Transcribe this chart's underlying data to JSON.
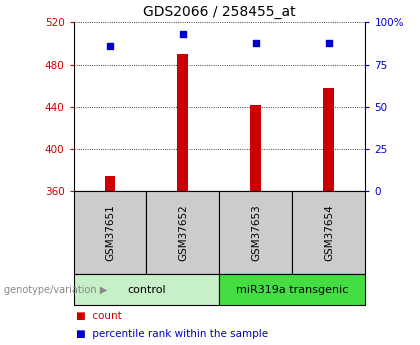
{
  "title": "GDS2066 / 258455_at",
  "samples": [
    "GSM37651",
    "GSM37652",
    "GSM37653",
    "GSM37654"
  ],
  "bar_values": [
    375,
    490,
    442,
    458
  ],
  "percentile_values": [
    86,
    93,
    88,
    88
  ],
  "bar_color": "#cc0000",
  "percentile_color": "#0000cc",
  "ylim_left": [
    360,
    520
  ],
  "ylim_right": [
    0,
    100
  ],
  "yticks_left": [
    360,
    400,
    440,
    480,
    520
  ],
  "yticks_right": [
    0,
    25,
    50,
    75,
    100
  ],
  "groups": [
    {
      "label": "control",
      "indices": [
        0,
        1
      ],
      "color": "#c8f0c8"
    },
    {
      "label": "miR319a transgenic",
      "indices": [
        2,
        3
      ],
      "color": "#44dd44"
    }
  ],
  "group_label_prefix": "genotype/variation",
  "legend_count_label": "count",
  "legend_percentile_label": "percentile rank within the sample",
  "tick_label_color_left": "#cc0000",
  "tick_label_color_right": "#0000cc",
  "bar_width": 0.15,
  "sample_box_color": "#cccccc"
}
